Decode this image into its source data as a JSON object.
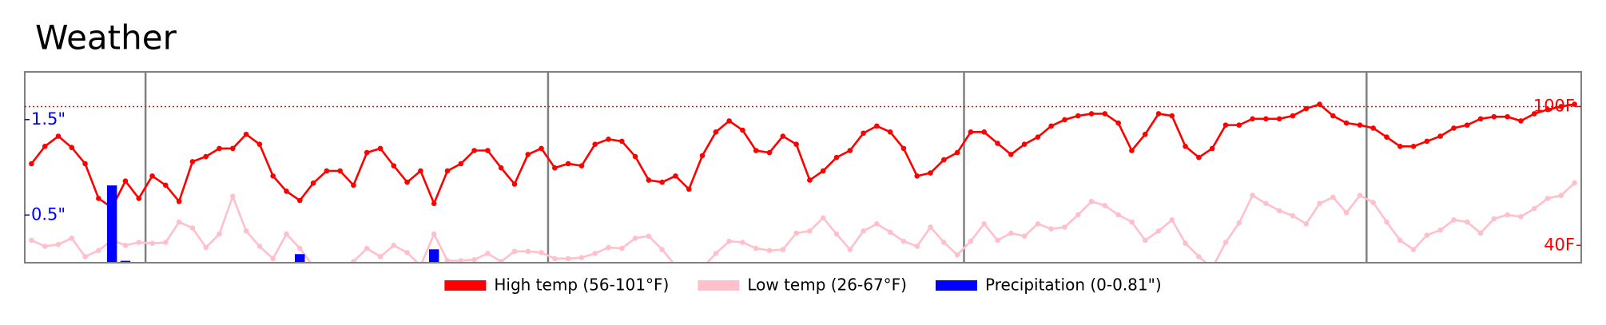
{
  "chart_data": {
    "type": "line",
    "title": "Weather",
    "series": [
      {
        "name": "High temp (56-101°F)",
        "color": "#ff0000",
        "axis": "y",
        "values": [
          75.3,
          82.8,
          87.2,
          82.3,
          75.3,
          60.3,
          56.3,
          67.8,
          60.3,
          70,
          66,
          59,
          76.2,
          78.4,
          81.9,
          81.9,
          88,
          83.7,
          70,
          63.4,
          59.4,
          66.9,
          72.2,
          72.2,
          66,
          80.1,
          81.9,
          74.4,
          67.3,
          72.2,
          58.1,
          72.2,
          75.3,
          81,
          81,
          73.5,
          66.5,
          79.3,
          81.9,
          73.5,
          75.3,
          74.4,
          83.7,
          85.9,
          85,
          78.4,
          68.2,
          67.3,
          70,
          64.3,
          78.8,
          89,
          93.8,
          89.8,
          81,
          80.1,
          87.2,
          83.7,
          68.2,
          72.2,
          78,
          81,
          88.5,
          91.6,
          89,
          81.9,
          70,
          71.3,
          77,
          80.1,
          89,
          89,
          84.1,
          79.3,
          83.7,
          86.8,
          91.6,
          94.3,
          96,
          96.9,
          96.9,
          92.9,
          81,
          88,
          96.9,
          96,
          82.8,
          78,
          81.9,
          92,
          92,
          94.7,
          94.7,
          94.7,
          96,
          99.1,
          101,
          96,
          92.9,
          92,
          90.7,
          86.8,
          82.8,
          82.8,
          85,
          87.2,
          90.7,
          92,
          94.7,
          95.6,
          95.6,
          93.8,
          96.9,
          98.7,
          100,
          101
        ]
      },
      {
        "name": "Low temp (26-67°F)",
        "color": "#ffc0cb",
        "axis": "y",
        "values": [
          42.2,
          39.6,
          40.4,
          43.1,
          35.1,
          37.8,
          42.2,
          40,
          41.3,
          40.9,
          41.3,
          50.1,
          47.5,
          39.1,
          44.9,
          61.2,
          46.2,
          39.6,
          34.3,
          44.9,
          38.7,
          31,
          26,
          29,
          33,
          38.7,
          35.1,
          40,
          36.9,
          31.2,
          44.9,
          33.4,
          33.4,
          33.8,
          36.5,
          33,
          37.4,
          37.4,
          36.9,
          34.3,
          34.3,
          34.7,
          36.5,
          39.1,
          38.7,
          43.1,
          44,
          38.2,
          31.2,
          29,
          30.3,
          36.5,
          41.8,
          41.3,
          38.7,
          37.8,
          38.2,
          45.3,
          46.2,
          51.9,
          44.9,
          38.2,
          46.2,
          49.3,
          45.7,
          41.8,
          39.6,
          47.9,
          41.3,
          35.9,
          41.8,
          49.3,
          42.2,
          45.3,
          44,
          49.3,
          47.1,
          47.9,
          53.2,
          59,
          57.2,
          53.2,
          50.1,
          42.2,
          46.2,
          51,
          40.9,
          35.1,
          30.3,
          41.3,
          49.7,
          61.6,
          58.1,
          55,
          52.8,
          49.3,
          58.1,
          60.8,
          54.1,
          61.6,
          58.5,
          50.1,
          42.2,
          38.2,
          44.4,
          46.6,
          51,
          50.1,
          45.3,
          51.5,
          53.2,
          52.4,
          55.9,
          60.3,
          61.6,
          67
        ]
      },
      {
        "name": "Precipitation (0-0.81\")",
        "color": "#0000ff",
        "axis": "y2",
        "type": "bar",
        "values": [
          0,
          0,
          0,
          0,
          0,
          0,
          0.81,
          0.02,
          0,
          0,
          0,
          0,
          0,
          0,
          0,
          0,
          0,
          0,
          0,
          0,
          0.09,
          0,
          0,
          0,
          0,
          0,
          0,
          0,
          0,
          0,
          0.14,
          0,
          0,
          0,
          0,
          0,
          0,
          0,
          0,
          0,
          0,
          0,
          0,
          0,
          0,
          0,
          0,
          0,
          0,
          0,
          0,
          0,
          0,
          0,
          0,
          0,
          0,
          0,
          0,
          0,
          0,
          0,
          0,
          0,
          0,
          0,
          0,
          0,
          0,
          0,
          0,
          0,
          0,
          0,
          0,
          0,
          0,
          0,
          0,
          0,
          0,
          0,
          0,
          0,
          0,
          0,
          0,
          0,
          0,
          0,
          0,
          0,
          0,
          0,
          0,
          0,
          0,
          0,
          0,
          0,
          0,
          0,
          0,
          0,
          0,
          0,
          0,
          0,
          0,
          0,
          0,
          0,
          0,
          0,
          0,
          0
        ]
      }
    ],
    "ylim": [
      32.5,
      115
    ],
    "yticks": [
      {
        "value": 40,
        "label": "40F"
      },
      {
        "value": 100,
        "label": "100F"
      }
    ],
    "y2lim": [
      0,
      2
    ],
    "y2ticks": [
      {
        "value": 0.5,
        "label": "0.5\""
      },
      {
        "value": 1.5,
        "label": "1.5\""
      }
    ],
    "hline": 100,
    "vlines": [
      8.5,
      38.5,
      69.5,
      99.5
    ]
  }
}
